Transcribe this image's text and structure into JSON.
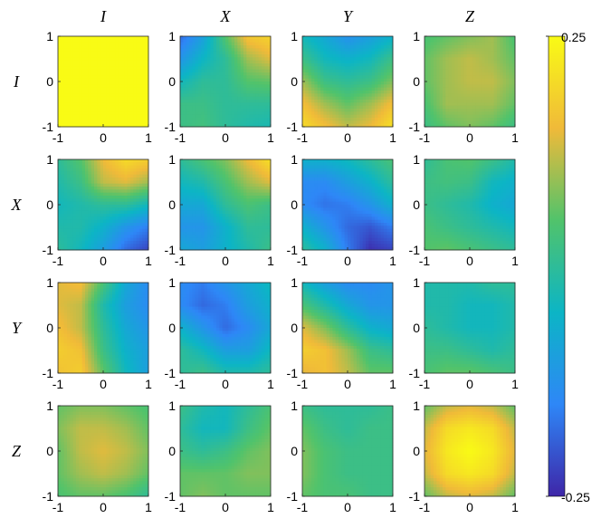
{
  "chart_data": {
    "type": "heatmap",
    "title": "",
    "layout": "4x4 grid of heatmaps",
    "row_labels": [
      "I",
      "X",
      "Y",
      "Z"
    ],
    "col_labels": [
      "I",
      "X",
      "Y",
      "Z"
    ],
    "xlim": [
      -1,
      1
    ],
    "ylim": [
      -1,
      1
    ],
    "x_ticks": [
      "-1",
      "0",
      "1"
    ],
    "y_ticks": [
      "-1",
      "0",
      "1"
    ],
    "colorbar": {
      "min": -0.25,
      "max": 0.25,
      "min_label": "-0.25",
      "max_label": "0.25",
      "colormap": "parula",
      "placement": "right"
    },
    "grid": false,
    "panels": [
      [
        {
          "row": "I",
          "col": "I",
          "values": [
            [
              0.25,
              0.25,
              0.25,
              0.25,
              0.25
            ],
            [
              0.25,
              0.25,
              0.25,
              0.25,
              0.25
            ],
            [
              0.25,
              0.25,
              0.25,
              0.25,
              0.25
            ],
            [
              0.25,
              0.25,
              0.25,
              0.25,
              0.25
            ],
            [
              0.25,
              0.25,
              0.25,
              0.25,
              0.25
            ]
          ]
        },
        {
          "row": "I",
          "col": "X",
          "values": [
            [
              -0.18,
              -0.1,
              0.05,
              0.17,
              0.19
            ],
            [
              -0.12,
              -0.05,
              0.0,
              0.1,
              0.14
            ],
            [
              -0.04,
              0.0,
              0.0,
              0.05,
              0.06
            ],
            [
              0.02,
              0.02,
              0.0,
              0.0,
              0.0
            ],
            [
              0.02,
              0.03,
              0.0,
              -0.02,
              -0.03
            ]
          ]
        },
        {
          "row": "I",
          "col": "Y",
          "values": [
            [
              -0.04,
              -0.08,
              -0.13,
              -0.1,
              -0.06
            ],
            [
              0.02,
              -0.04,
              -0.06,
              -0.04,
              0.02
            ],
            [
              0.1,
              0.02,
              0.0,
              0.02,
              0.08
            ],
            [
              0.16,
              0.1,
              0.06,
              0.1,
              0.16
            ],
            [
              0.2,
              0.16,
              0.12,
              0.15,
              0.21
            ]
          ]
        },
        {
          "row": "I",
          "col": "Z",
          "values": [
            [
              0.04,
              0.06,
              0.08,
              0.1,
              0.04
            ],
            [
              0.06,
              0.1,
              0.12,
              0.1,
              0.06
            ],
            [
              0.06,
              0.1,
              0.12,
              0.12,
              0.08
            ],
            [
              0.04,
              0.1,
              0.1,
              0.1,
              0.06
            ],
            [
              0.02,
              0.06,
              0.08,
              0.06,
              0.02
            ]
          ]
        }
      ],
      [
        {
          "row": "X",
          "col": "I",
          "values": [
            [
              0.0,
              0.05,
              0.15,
              0.2,
              0.18
            ],
            [
              -0.02,
              0.02,
              0.12,
              0.14,
              0.1
            ],
            [
              -0.04,
              -0.02,
              0.0,
              0.0,
              -0.04
            ],
            [
              -0.02,
              -0.02,
              -0.06,
              -0.12,
              -0.16
            ],
            [
              0.0,
              -0.04,
              -0.1,
              -0.18,
              -0.22
            ]
          ]
        },
        {
          "row": "X",
          "col": "X",
          "values": [
            [
              0.0,
              0.04,
              0.08,
              0.15,
              0.21
            ],
            [
              -0.04,
              -0.02,
              0.04,
              0.1,
              0.14
            ],
            [
              -0.08,
              -0.08,
              0.0,
              0.04,
              0.02
            ],
            [
              -0.12,
              -0.12,
              -0.06,
              0.0,
              0.0
            ],
            [
              -0.08,
              -0.1,
              -0.06,
              -0.02,
              0.02
            ]
          ]
        },
        {
          "row": "X",
          "col": "Y",
          "values": [
            [
              -0.06,
              -0.06,
              -0.04,
              0.0,
              0.04
            ],
            [
              -0.14,
              -0.14,
              -0.1,
              -0.06,
              0.0
            ],
            [
              -0.14,
              -0.17,
              -0.16,
              -0.12,
              -0.06
            ],
            [
              -0.06,
              -0.12,
              -0.18,
              -0.2,
              -0.16
            ],
            [
              0.0,
              -0.06,
              -0.16,
              -0.24,
              -0.22
            ]
          ]
        },
        {
          "row": "X",
          "col": "Z",
          "values": [
            [
              0.0,
              0.04,
              0.05,
              0.02,
              -0.02
            ],
            [
              0.02,
              0.03,
              0.02,
              -0.04,
              -0.06
            ],
            [
              0.02,
              0.0,
              -0.02,
              -0.06,
              -0.08
            ],
            [
              0.04,
              0.02,
              0.0,
              -0.02,
              -0.04
            ],
            [
              0.05,
              0.06,
              0.04,
              0.02,
              0.0
            ]
          ]
        }
      ],
      [
        {
          "row": "Y",
          "col": "I",
          "values": [
            [
              0.14,
              0.16,
              0.04,
              -0.08,
              -0.14
            ],
            [
              0.14,
              0.12,
              -0.02,
              -0.1,
              -0.14
            ],
            [
              0.16,
              0.12,
              0.0,
              -0.08,
              -0.12
            ],
            [
              0.18,
              0.16,
              0.02,
              -0.06,
              -0.1
            ],
            [
              0.16,
              0.18,
              0.06,
              -0.04,
              -0.1
            ]
          ]
        },
        {
          "row": "Y",
          "col": "X",
          "values": [
            [
              -0.14,
              -0.16,
              -0.12,
              -0.08,
              -0.04
            ],
            [
              -0.14,
              -0.18,
              -0.16,
              -0.1,
              -0.06
            ],
            [
              -0.06,
              -0.12,
              -0.18,
              -0.14,
              -0.08
            ],
            [
              0.0,
              -0.04,
              -0.1,
              -0.1,
              -0.04
            ],
            [
              0.0,
              0.02,
              -0.02,
              -0.02,
              0.0
            ]
          ]
        },
        {
          "row": "Y",
          "col": "Y",
          "values": [
            [
              -0.04,
              -0.1,
              -0.14,
              -0.14,
              -0.12
            ],
            [
              0.04,
              -0.02,
              -0.08,
              -0.12,
              -0.12
            ],
            [
              0.14,
              0.08,
              0.0,
              -0.06,
              -0.08
            ],
            [
              0.18,
              0.16,
              0.1,
              0.02,
              0.0
            ],
            [
              0.14,
              0.16,
              0.12,
              0.06,
              0.06
            ]
          ]
        },
        {
          "row": "Y",
          "col": "Z",
          "values": [
            [
              -0.02,
              -0.02,
              -0.02,
              0.0,
              0.0
            ],
            [
              -0.02,
              -0.02,
              -0.04,
              -0.04,
              -0.02
            ],
            [
              0.0,
              -0.02,
              -0.04,
              -0.04,
              -0.02
            ],
            [
              0.02,
              0.02,
              0.0,
              -0.02,
              0.0
            ],
            [
              0.04,
              0.06,
              0.06,
              0.04,
              0.02
            ]
          ]
        }
      ],
      [
        {
          "row": "Z",
          "col": "I",
          "values": [
            [
              0.06,
              0.08,
              0.08,
              0.06,
              0.04
            ],
            [
              0.08,
              0.12,
              0.12,
              0.1,
              0.06
            ],
            [
              0.06,
              0.12,
              0.14,
              0.12,
              0.08
            ],
            [
              0.06,
              0.1,
              0.12,
              0.1,
              0.06
            ],
            [
              0.04,
              0.06,
              0.06,
              0.04,
              0.0
            ]
          ]
        },
        {
          "row": "Z",
          "col": "X",
          "values": [
            [
              0.02,
              -0.02,
              -0.04,
              0.0,
              0.04
            ],
            [
              0.0,
              -0.04,
              -0.04,
              0.02,
              0.06
            ],
            [
              0.02,
              0.0,
              0.02,
              0.06,
              0.08
            ],
            [
              0.06,
              0.06,
              0.06,
              0.08,
              0.08
            ],
            [
              0.06,
              0.08,
              0.06,
              0.06,
              0.06
            ]
          ]
        },
        {
          "row": "Z",
          "col": "Y",
          "values": [
            [
              0.02,
              0.0,
              0.0,
              0.0,
              0.02
            ],
            [
              0.06,
              0.02,
              0.0,
              0.02,
              0.02
            ],
            [
              0.08,
              0.04,
              0.02,
              0.02,
              0.02
            ],
            [
              0.08,
              0.04,
              0.02,
              0.02,
              0.02
            ],
            [
              0.06,
              0.04,
              0.04,
              0.02,
              0.02
            ]
          ]
        },
        {
          "row": "Z",
          "col": "Z",
          "values": [
            [
              0.06,
              0.12,
              0.14,
              0.12,
              0.06
            ],
            [
              0.12,
              0.2,
              0.22,
              0.2,
              0.12
            ],
            [
              0.14,
              0.22,
              0.25,
              0.22,
              0.14
            ],
            [
              0.12,
              0.2,
              0.22,
              0.2,
              0.12
            ],
            [
              0.06,
              0.12,
              0.14,
              0.12,
              0.06
            ]
          ]
        }
      ]
    ]
  }
}
